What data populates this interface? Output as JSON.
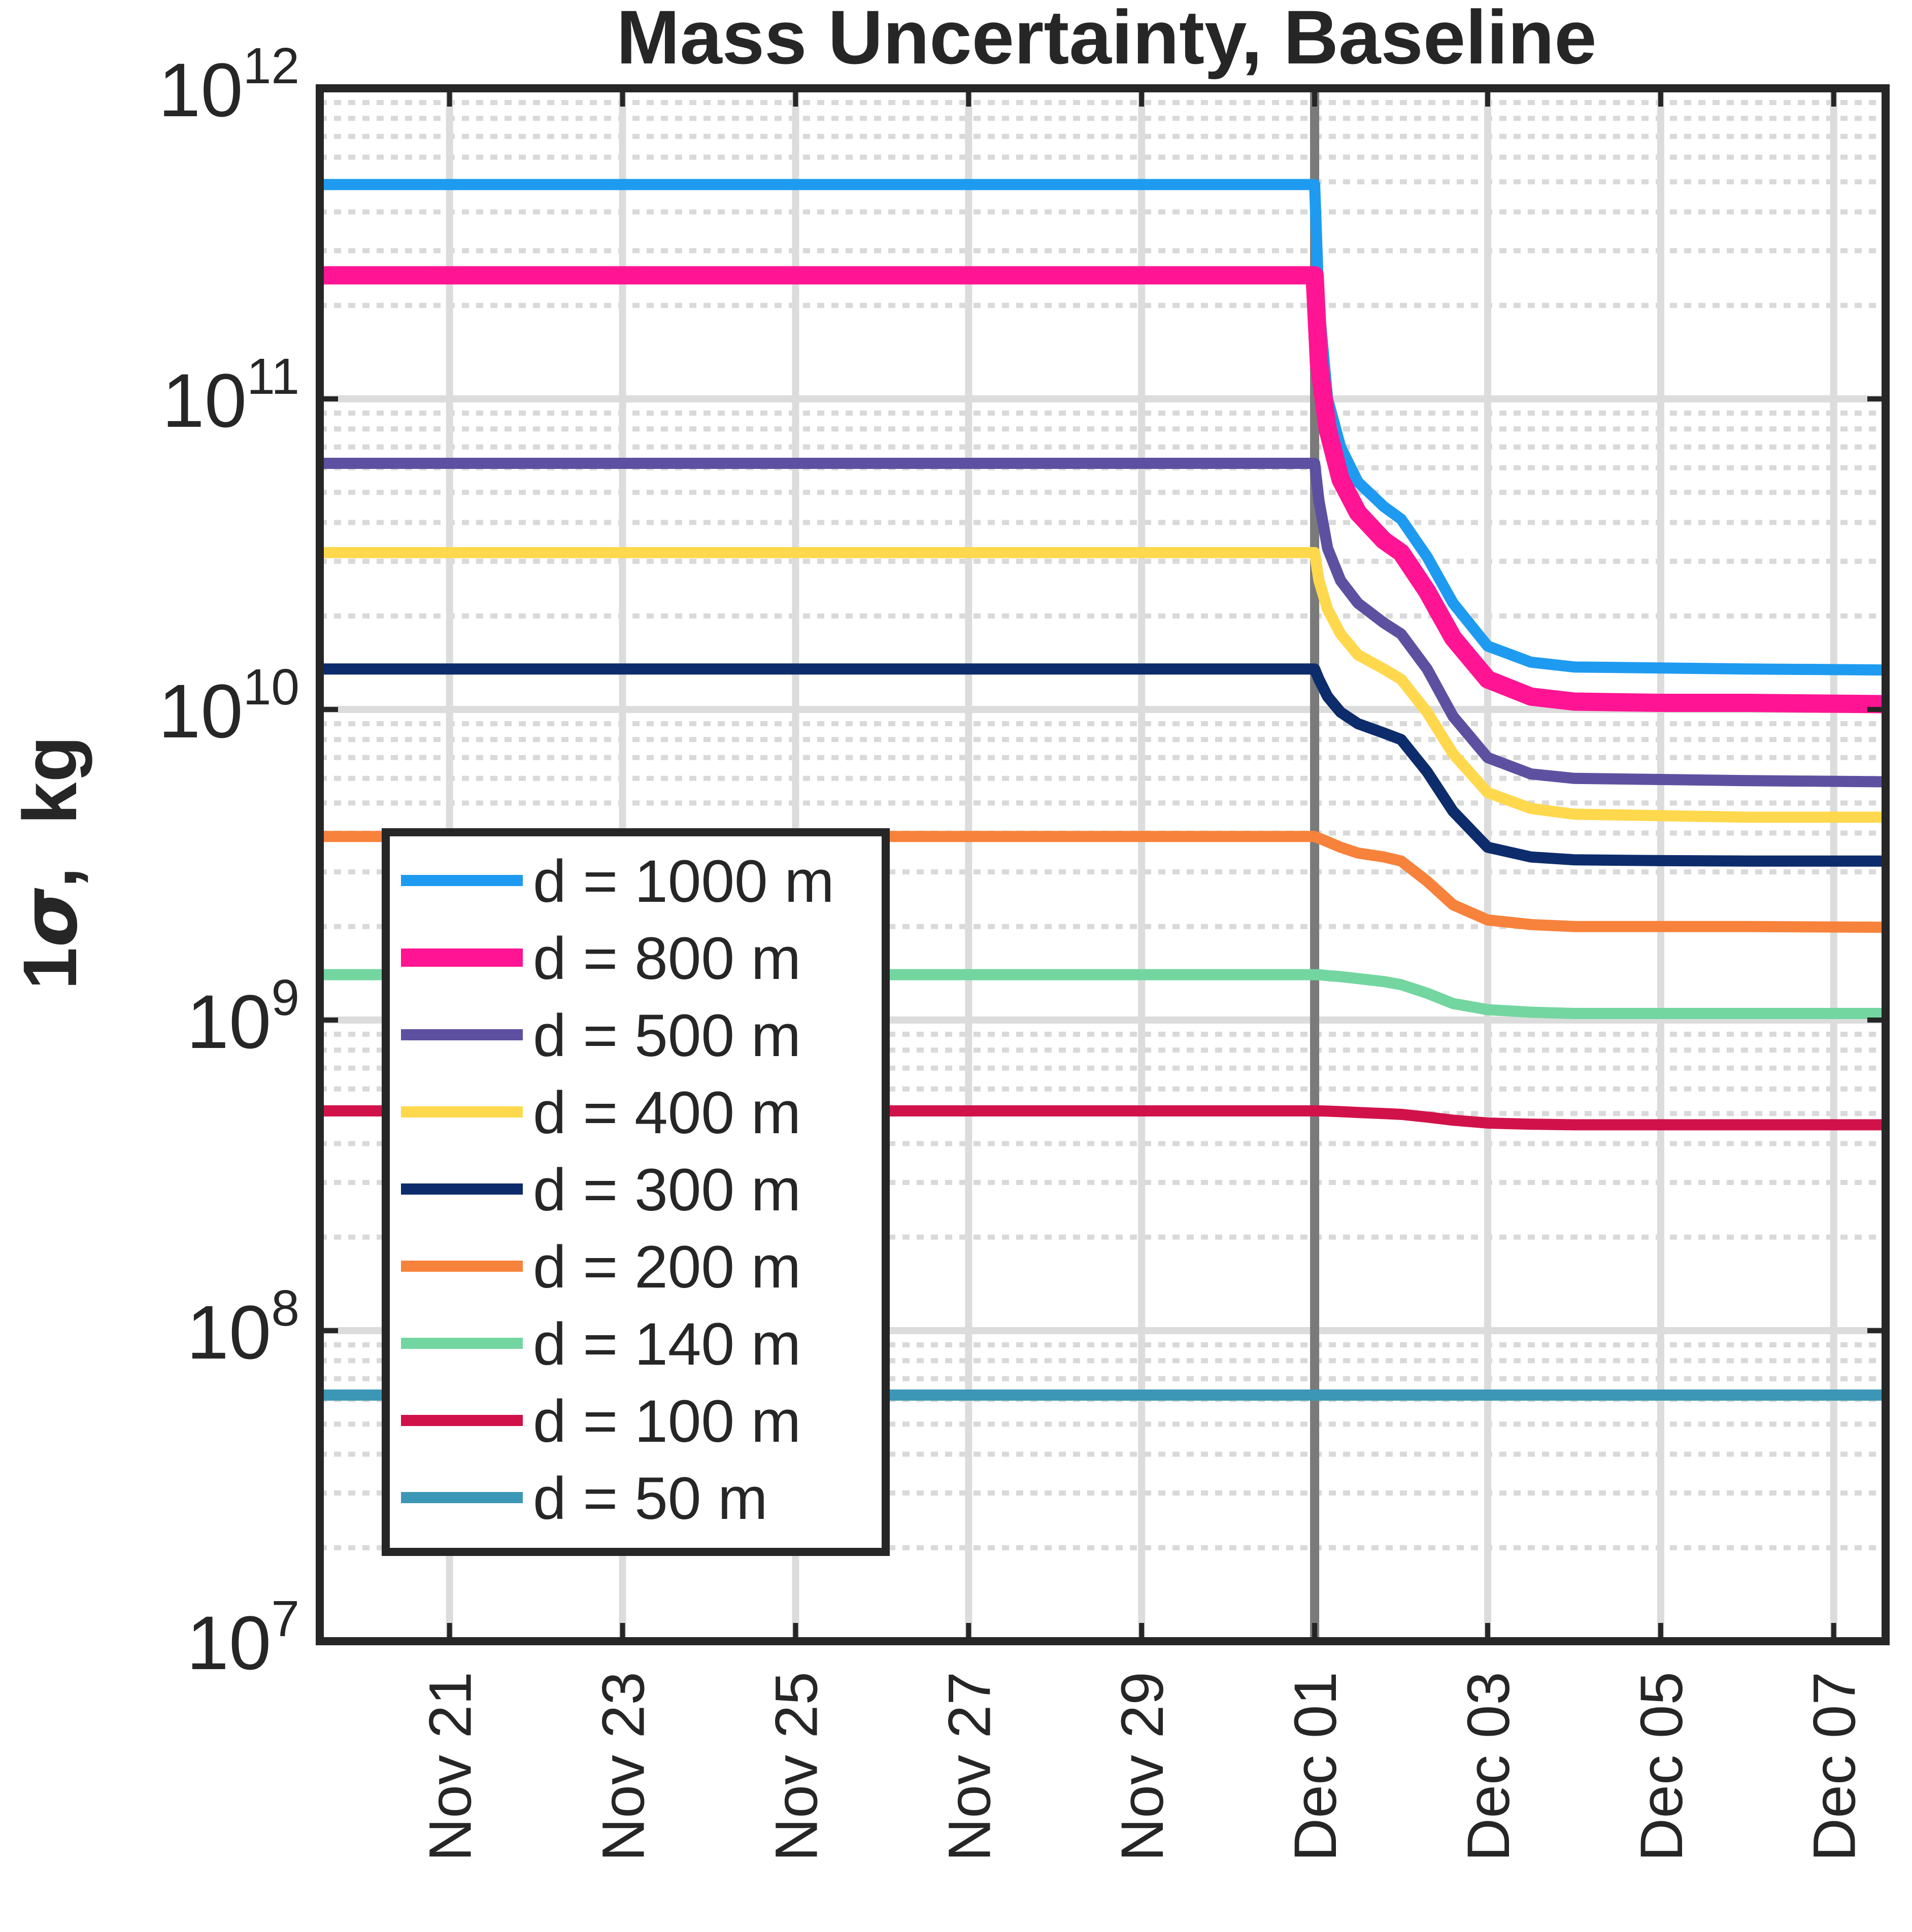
{
  "chart_data": {
    "type": "line",
    "title": "Mass Uncertainty, Baseline",
    "xlabel": "",
    "ylabel_parts": {
      "number": "1",
      "symbol": "σ",
      "unit": ",  kg"
    },
    "yscale": "log",
    "ylim": [
      10000000,
      1000000000000
    ],
    "yticks": [
      {
        "value": 10000000,
        "base": "10",
        "exp": "7"
      },
      {
        "value": 100000000,
        "base": "10",
        "exp": "8"
      },
      {
        "value": 1000000000,
        "base": "10",
        "exp": "9"
      },
      {
        "value": 10000000000,
        "base": "10",
        "exp": "10"
      },
      {
        "value": 100000000000,
        "base": "10",
        "exp": "11"
      },
      {
        "value": 1000000000000,
        "base": "10",
        "exp": "12"
      }
    ],
    "xlim_days": [
      -0.5,
      17.6
    ],
    "xticks": [
      {
        "day": 1,
        "label": "Nov 21"
      },
      {
        "day": 3,
        "label": "Nov 23"
      },
      {
        "day": 5,
        "label": "Nov 25"
      },
      {
        "day": 7,
        "label": "Nov 27"
      },
      {
        "day": 9,
        "label": "Nov 29"
      },
      {
        "day": 11,
        "label": "Dec 01"
      },
      {
        "day": 13,
        "label": "Dec 03"
      },
      {
        "day": 15,
        "label": "Dec 05"
      },
      {
        "day": 17,
        "label": "Dec 07"
      }
    ],
    "event_line_day": 11,
    "grid": true,
    "legend_position": "lower-left",
    "x": [
      -0.5,
      11.0,
      11.05,
      11.15,
      11.3,
      11.5,
      11.8,
      12.0,
      12.3,
      12.6,
      13.0,
      13.5,
      14.0,
      15.0,
      16.0,
      17.6
    ],
    "series": [
      {
        "name": "d = 1000 m",
        "color": "#1E9BF0",
        "width": 22,
        "values": [
          490000000000.0,
          490000000000.0,
          200000000000.0,
          100000000000.0,
          70000000000.0,
          54000000000.0,
          45000000000.0,
          41000000000.0,
          31000000000.0,
          22000000000.0,
          16000000000.0,
          14200000000.0,
          13700000000.0,
          13600000000.0,
          13500000000.0,
          13400000000.0
        ]
      },
      {
        "name": "d =   800 m",
        "color": "#FF1493",
        "width": 36,
        "values": [
          250000000000.0,
          250000000000.0,
          130000000000.0,
          80000000000.0,
          55000000000.0,
          43000000000.0,
          35000000000.0,
          32000000000.0,
          24000000000.0,
          17000000000.0,
          12500000000.0,
          11000000000.0,
          10600000000.0,
          10500000000.0,
          10500000000.0,
          10400000000.0
        ]
      },
      {
        "name": "d =   500 m",
        "color": "#5E50A1",
        "width": 22,
        "values": [
          62000000000.0,
          62000000000.0,
          47000000000.0,
          33000000000.0,
          26000000000.0,
          22000000000.0,
          19000000000.0,
          17500000000.0,
          13500000000.0,
          9500000000.0,
          7000000000.0,
          6200000000.0,
          6000000000.0,
          5950000000.0,
          5900000000.0,
          5850000000.0
        ]
      },
      {
        "name": "d =   400 m",
        "color": "#FFD84D",
        "width": 22,
        "values": [
          32000000000.0,
          32000000000.0,
          26000000000.0,
          21000000000.0,
          17500000000.0,
          15000000000.0,
          13500000000.0,
          12500000000.0,
          9800000000.0,
          7200000000.0,
          5400000000.0,
          4800000000.0,
          4600000000.0,
          4550000000.0,
          4500000000.0,
          4500000000.0
        ]
      },
      {
        "name": "d =   300 m",
        "color": "#0D2C6B",
        "width": 22,
        "values": [
          13500000000.0,
          13500000000.0,
          12500000000.0,
          11000000000.0,
          9800000000.0,
          9000000000.0,
          8400000000.0,
          8000000000.0,
          6300000000.0,
          4700000000.0,
          3600000000.0,
          3350000000.0,
          3280000000.0,
          3260000000.0,
          3250000000.0,
          3250000000.0
        ]
      },
      {
        "name": "d =   200 m",
        "color": "#F7823B",
        "width": 22,
        "values": [
          3900000000.0,
          3900000000.0,
          3850000000.0,
          3750000000.0,
          3600000000.0,
          3450000000.0,
          3350000000.0,
          3250000000.0,
          2800000000.0,
          2350000000.0,
          2100000000.0,
          2030000000.0,
          2000000000.0,
          2000000000.0,
          2000000000.0,
          1990000000.0
        ]
      },
      {
        "name": "d =   140 m",
        "color": "#73D6A0",
        "width": 22,
        "values": [
          1400000000.0,
          1400000000.0,
          1400000000.0,
          1390000000.0,
          1380000000.0,
          1360000000.0,
          1330000000.0,
          1300000000.0,
          1220000000.0,
          1130000000.0,
          1080000000.0,
          1060000000.0,
          1050000000.0,
          1050000000.0,
          1050000000.0,
          1050000000.0
        ]
      },
      {
        "name": "d =   100 m",
        "color": "#D1124A",
        "width": 22,
        "values": [
          510000000.0,
          510000000.0,
          510000000.0,
          509000000.0,
          507000000.0,
          504000000.0,
          500000000.0,
          497000000.0,
          487000000.0,
          476000000.0,
          466000000.0,
          462000000.0,
          460000000.0,
          460000000.0,
          460000000.0,
          460000000.0
        ]
      },
      {
        "name": "d =     50 m",
        "color": "#3C97B6",
        "width": 22,
        "values": [
          62000000.0,
          62000000.0,
          62000000.0,
          62000000.0,
          62000000.0,
          62000000.0,
          62000000.0,
          62000000.0,
          62000000.0,
          62000000.0,
          62000000.0,
          62000000.0,
          62000000.0,
          62000000.0,
          62000000.0,
          62000000.0
        ]
      }
    ]
  }
}
